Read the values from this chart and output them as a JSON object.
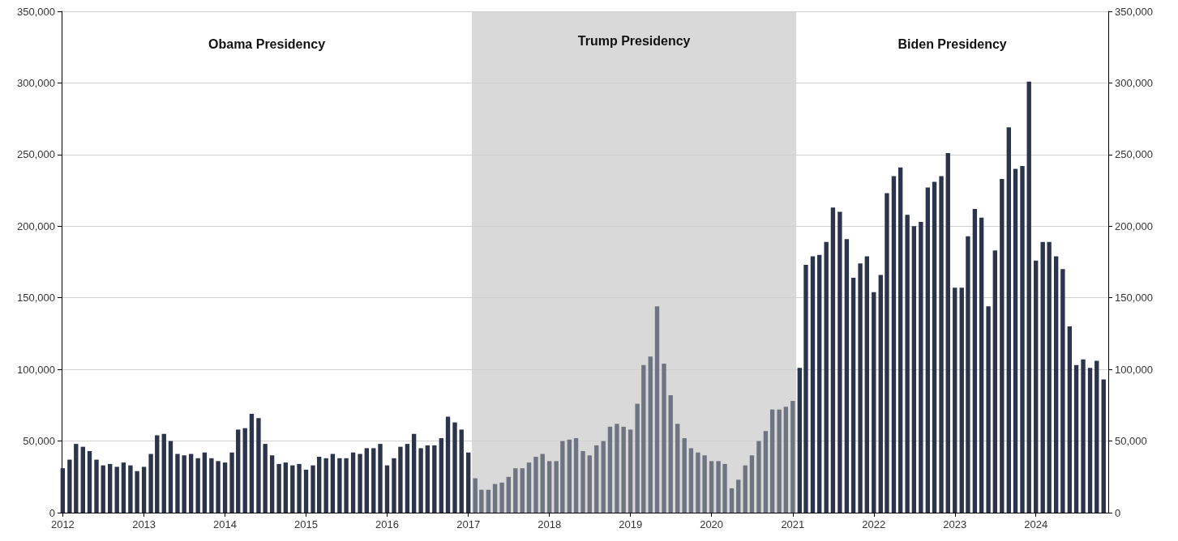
{
  "chart_data": {
    "type": "bar",
    "x": [
      "2012-01",
      "2012-02",
      "2012-03",
      "2012-04",
      "2012-05",
      "2012-06",
      "2012-07",
      "2012-08",
      "2012-09",
      "2012-10",
      "2012-11",
      "2012-12",
      "2013-01",
      "2013-02",
      "2013-03",
      "2013-04",
      "2013-05",
      "2013-06",
      "2013-07",
      "2013-08",
      "2013-09",
      "2013-10",
      "2013-11",
      "2013-12",
      "2014-01",
      "2014-02",
      "2014-03",
      "2014-04",
      "2014-05",
      "2014-06",
      "2014-07",
      "2014-08",
      "2014-09",
      "2014-10",
      "2014-11",
      "2014-12",
      "2015-01",
      "2015-02",
      "2015-03",
      "2015-04",
      "2015-05",
      "2015-06",
      "2015-07",
      "2015-08",
      "2015-09",
      "2015-10",
      "2015-11",
      "2015-12",
      "2016-01",
      "2016-02",
      "2016-03",
      "2016-04",
      "2016-05",
      "2016-06",
      "2016-07",
      "2016-08",
      "2016-09",
      "2016-10",
      "2016-11",
      "2016-12",
      "2017-01",
      "2017-02",
      "2017-03",
      "2017-04",
      "2017-05",
      "2017-06",
      "2017-07",
      "2017-08",
      "2017-09",
      "2017-10",
      "2017-11",
      "2017-12",
      "2018-01",
      "2018-02",
      "2018-03",
      "2018-04",
      "2018-05",
      "2018-06",
      "2018-07",
      "2018-08",
      "2018-09",
      "2018-10",
      "2018-11",
      "2018-12",
      "2019-01",
      "2019-02",
      "2019-03",
      "2019-04",
      "2019-05",
      "2019-06",
      "2019-07",
      "2019-08",
      "2019-09",
      "2019-10",
      "2019-11",
      "2019-12",
      "2020-01",
      "2020-02",
      "2020-03",
      "2020-04",
      "2020-05",
      "2020-06",
      "2020-07",
      "2020-08",
      "2020-09",
      "2020-10",
      "2020-11",
      "2020-12",
      "2021-01",
      "2021-02",
      "2021-03",
      "2021-04",
      "2021-05",
      "2021-06",
      "2021-07",
      "2021-08",
      "2021-09",
      "2021-10",
      "2021-11",
      "2021-12",
      "2022-01",
      "2022-02",
      "2022-03",
      "2022-04",
      "2022-05",
      "2022-06",
      "2022-07",
      "2022-08",
      "2022-09",
      "2022-10",
      "2022-11",
      "2022-12",
      "2023-01",
      "2023-02",
      "2023-03",
      "2023-04",
      "2023-05",
      "2023-06",
      "2023-07",
      "2023-08",
      "2023-09",
      "2023-10",
      "2023-11",
      "2023-12",
      "2024-01",
      "2024-02",
      "2024-03",
      "2024-04",
      "2024-05",
      "2024-06",
      "2024-07",
      "2024-08",
      "2024-09",
      "2024-10",
      "2024-11"
    ],
    "values": [
      31000,
      37000,
      48000,
      46000,
      43000,
      37000,
      33000,
      34000,
      32000,
      35000,
      33000,
      29000,
      32000,
      41000,
      54000,
      55000,
      50000,
      41000,
      40000,
      41000,
      38000,
      42000,
      38000,
      36000,
      35000,
      42000,
      58000,
      59000,
      69000,
      66000,
      48000,
      40000,
      34000,
      35000,
      33000,
      34000,
      30000,
      33000,
      39000,
      38000,
      41000,
      38000,
      38000,
      42000,
      41000,
      45000,
      45000,
      48000,
      33000,
      38000,
      46000,
      48000,
      55000,
      45000,
      47000,
      47000,
      52000,
      67000,
      63000,
      58000,
      42000,
      24000,
      16000,
      16000,
      20000,
      21000,
      25000,
      31000,
      31000,
      35000,
      39000,
      41000,
      36000,
      36000,
      50000,
      51000,
      52000,
      43000,
      40000,
      47000,
      50000,
      60000,
      62000,
      60000,
      58000,
      76000,
      103000,
      109000,
      144000,
      104000,
      82000,
      62000,
      52000,
      45000,
      42000,
      40000,
      36000,
      36000,
      34000,
      17000,
      23000,
      33000,
      40000,
      50000,
      57000,
      72000,
      72000,
      74000,
      78000,
      101000,
      173000,
      179000,
      180000,
      189000,
      213000,
      210000,
      191000,
      164000,
      174000,
      179000,
      154000,
      166000,
      223000,
      235000,
      241000,
      208000,
      200000,
      203000,
      227000,
      231000,
      235000,
      251000,
      157000,
      157000,
      193000,
      212000,
      206000,
      144000,
      183000,
      233000,
      269000,
      240000,
      242000,
      301000,
      176000,
      189000,
      189000,
      179000,
      170000,
      130000,
      103000,
      107000,
      101000,
      106000,
      93000
    ],
    "colors": [
      "#2b344b",
      "#2b344b",
      "#2b344b",
      "#2b344b",
      "#2b344b",
      "#2b344b",
      "#2b344b",
      "#2b344b",
      "#2b344b",
      "#2b344b",
      "#2b344b",
      "#2b344b",
      "#2b344b",
      "#2b344b",
      "#2b344b",
      "#2b344b",
      "#2b344b",
      "#2b344b",
      "#2b344b",
      "#2b344b",
      "#2b344b",
      "#2b344b",
      "#2b344b",
      "#2b344b",
      "#2b344b",
      "#2b344b",
      "#2b344b",
      "#2b344b",
      "#2b344b",
      "#2b344b",
      "#2b344b",
      "#2b344b",
      "#2b344b",
      "#2b344b",
      "#2b344b",
      "#2b344b",
      "#2b344b",
      "#2b344b",
      "#2b344b",
      "#2b344b",
      "#2b344b",
      "#2b344b",
      "#2b344b",
      "#2b344b",
      "#2b344b",
      "#2b344b",
      "#2b344b",
      "#2b344b",
      "#2b344b",
      "#2b344b",
      "#2b344b",
      "#2b344b",
      "#2b344b",
      "#2b344b",
      "#2b344b",
      "#2b344b",
      "#2b344b",
      "#2b344b",
      "#2b344b",
      "#2b344b",
      "#2b344b",
      "#6f7482",
      "#6f7482",
      "#6f7482",
      "#6f7482",
      "#6f7482",
      "#6f7482",
      "#6f7482",
      "#6f7482",
      "#6f7482",
      "#6f7482",
      "#6f7482",
      "#6f7482",
      "#6f7482",
      "#6f7482",
      "#6f7482",
      "#6f7482",
      "#6f7482",
      "#6f7482",
      "#6f7482",
      "#6f7482",
      "#6f7482",
      "#6f7482",
      "#6f7482",
      "#6f7482",
      "#6f7482",
      "#6f7482",
      "#6f7482",
      "#6f7482",
      "#6f7482",
      "#6f7482",
      "#6f7482",
      "#6f7482",
      "#6f7482",
      "#6f7482",
      "#6f7482",
      "#6f7482",
      "#6f7482",
      "#6f7482",
      "#6f7482",
      "#6f7482",
      "#6f7482",
      "#6f7482",
      "#6f7482",
      "#6f7482",
      "#6f7482",
      "#6f7482",
      "#6f7482",
      "#6f7482",
      "#2b344b",
      "#2b344b",
      "#2b344b",
      "#2b344b",
      "#2b344b",
      "#2b344b",
      "#2b344b",
      "#2b344b",
      "#2b344b",
      "#2b344b",
      "#2b344b",
      "#2b344b",
      "#2b344b",
      "#2b344b",
      "#2b344b",
      "#2b344b",
      "#2b344b",
      "#2b344b",
      "#2b344b",
      "#2b344b",
      "#2b344b",
      "#2b344b",
      "#2b344b",
      "#2b344b",
      "#2b344b",
      "#2b344b",
      "#2b344b",
      "#2b344b",
      "#2b344b",
      "#2b344b",
      "#2b344b",
      "#2b344b",
      "#2b344b",
      "#2b344b",
      "#2b344b",
      "#2b344b",
      "#2b344b",
      "#2b344b",
      "#2b344b",
      "#2b344b",
      "#2b344b",
      "#2b344b",
      "#2b344b",
      "#2b344b",
      "#2b344b",
      "#2b344b"
    ],
    "xlim": [
      "2011-12-27",
      "2024-11-22"
    ],
    "xticks": [
      {
        "value": "2012",
        "label": "2012"
      },
      {
        "value": "2013",
        "label": "2013"
      },
      {
        "value": "2014",
        "label": "2014"
      },
      {
        "value": "2015",
        "label": "2015"
      },
      {
        "value": "2016",
        "label": "2016"
      },
      {
        "value": "2017",
        "label": "2017"
      },
      {
        "value": "2018",
        "label": "2018"
      },
      {
        "value": "2019",
        "label": "2019"
      },
      {
        "value": "2020",
        "label": "2020"
      },
      {
        "value": "2021",
        "label": "2021"
      },
      {
        "value": "2022",
        "label": "2022"
      },
      {
        "value": "2023",
        "label": "2023"
      },
      {
        "value": "2024",
        "label": "2024"
      }
    ],
    "ylim": [
      0,
      350000
    ],
    "yticks": [
      0,
      {
        "value": 50000,
        "label": "50,000"
      },
      {
        "value": 100000,
        "label": "100,000"
      },
      {
        "value": 150000,
        "label": "150,000"
      },
      {
        "value": 200000,
        "label": "200,000"
      },
      {
        "value": 250000,
        "label": "250,000"
      },
      {
        "value": 300000,
        "label": "300,000"
      },
      {
        "value": 350000,
        "label": "350,000"
      }
    ],
    "y2lim": [
      0,
      350000
    ],
    "y2ticks": [
      0,
      {
        "value": 50000,
        "label": "50,000"
      },
      {
        "value": 100000,
        "label": "100,000"
      },
      {
        "value": 150000,
        "label": "150,000"
      },
      {
        "value": 200000,
        "label": "200,000"
      },
      {
        "value": 250000,
        "label": "250,000"
      },
      {
        "value": 300000,
        "label": "300,000"
      },
      {
        "value": 350000,
        "label": "350,000"
      }
    ],
    "bands": [
      {
        "axis": "x",
        "from": "2017-01-17",
        "to": "2021-01-17",
        "label": "Trump Presidency",
        "color": "#d9d9d9"
      }
    ],
    "annotations": [
      "Obama Presidency",
      "Biden Presidency"
    ],
    "grid": "y"
  }
}
